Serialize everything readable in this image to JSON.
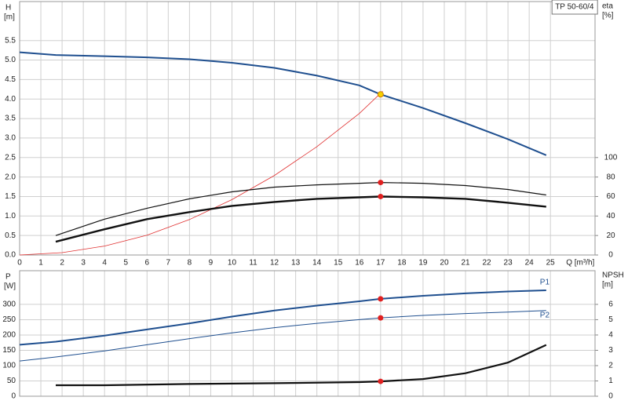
{
  "chart_data": [
    {
      "type": "line",
      "y_label": "H",
      "y_unit": "[m]",
      "y2_label": "eta",
      "y2_unit": "[%]",
      "x_label": "Q [m³/h]",
      "model": "TP 50-60/4",
      "xlim": [
        0,
        27.1
      ],
      "xticks": [
        0,
        1,
        2,
        3,
        4,
        5,
        6,
        7,
        8,
        9,
        10,
        11,
        12,
        13,
        14,
        15,
        16,
        17,
        18,
        19,
        20,
        21,
        22,
        23,
        24,
        25
      ],
      "ylim": [
        0,
        6.5
      ],
      "yticks": [
        {
          "value": 0,
          "label": "0.0"
        },
        0.5,
        {
          "value": 1,
          "label": "1.0"
        },
        1.5,
        {
          "value": 2,
          "label": "2.0"
        },
        2.5,
        {
          "value": 3,
          "label": "3.0"
        },
        3.5,
        {
          "value": 4,
          "label": "4.0"
        },
        4.5,
        {
          "value": 5,
          "label": "5.0"
        },
        5.5
      ],
      "y2lim": [
        0,
        260
      ],
      "y2ticks": [
        0,
        20,
        40,
        60,
        80,
        100
      ],
      "grid": true,
      "series": [
        {
          "color": "#1f4f8f",
          "width": 2,
          "axis": "y",
          "x": [
            0,
            1.7,
            4,
            6,
            8,
            10,
            12,
            14,
            16,
            17,
            19,
            21,
            23,
            24.8
          ],
          "values": [
            5.2,
            5.13,
            5.1,
            5.07,
            5.02,
            4.93,
            4.8,
            4.6,
            4.35,
            4.12,
            3.77,
            3.38,
            2.97,
            2.56
          ]
        },
        {
          "color": "#e03030",
          "width": 0.8,
          "axis": "y",
          "x": [
            0,
            2,
            4,
            6,
            8,
            10,
            12,
            14,
            16,
            17.1
          ],
          "values": [
            0,
            0.06,
            0.23,
            0.51,
            0.91,
            1.42,
            2.04,
            2.78,
            3.63,
            4.2
          ]
        },
        {
          "color": "#111111",
          "width": 1.2,
          "axis": "y2",
          "x": [
            1.7,
            4,
            6,
            8,
            10,
            12,
            14,
            16,
            17,
            19,
            21,
            23,
            24.8
          ],
          "values": [
            20,
            36.8,
            48,
            57.6,
            64.8,
            69.6,
            72,
            73.6,
            74.4,
            73.6,
            71.2,
            67.2,
            61.6
          ]
        },
        {
          "color": "#111111",
          "width": 2.4,
          "axis": "y2",
          "x": [
            1.7,
            4,
            6,
            8,
            10,
            12,
            14,
            16,
            17,
            19,
            21,
            23,
            24.8
          ],
          "values": [
            13.6,
            26.4,
            36.8,
            44,
            50.4,
            54.4,
            57.6,
            59.2,
            60,
            59.2,
            57.6,
            53.6,
            49.6
          ]
        }
      ],
      "duty_points": [
        {
          "x": 17,
          "y": 4.12,
          "axis": "y",
          "color": "#f5d000"
        },
        {
          "x": 17,
          "y": 74.4,
          "axis": "y2",
          "color": "#e02020"
        },
        {
          "x": 17,
          "y": 60,
          "axis": "y2",
          "color": "#e02020"
        }
      ]
    },
    {
      "type": "line",
      "y_label": "P",
      "y_unit": "[W]",
      "y2_label": "NPSH",
      "y2_unit": "[m]",
      "xlim": [
        0,
        27.1
      ],
      "xticks": [
        0,
        1,
        2,
        3,
        4,
        5,
        6,
        7,
        8,
        9,
        10,
        11,
        12,
        13,
        14,
        15,
        16,
        17,
        18,
        19,
        20,
        21,
        22,
        23,
        24,
        25
      ],
      "show_xtick_labels": false,
      "ylim": [
        0,
        410
      ],
      "yticks": [
        0,
        50,
        100,
        150,
        200,
        250,
        300
      ],
      "y2lim": [
        0,
        8.2
      ],
      "y2ticks": [
        0,
        1,
        2,
        3,
        4,
        5,
        6
      ],
      "grid": true,
      "series": [
        {
          "name": "P1",
          "color": "#1f4f8f",
          "width": 2,
          "axis": "y",
          "x": [
            0,
            1.7,
            4,
            6,
            8,
            10,
            12,
            14,
            16,
            17,
            19,
            21,
            23,
            24.8
          ],
          "values": [
            168,
            178,
            198,
            218,
            238,
            260,
            280,
            296,
            310,
            318,
            328,
            336,
            342,
            346
          ]
        },
        {
          "name": "P2",
          "color": "#1f4f8f",
          "width": 1,
          "axis": "y",
          "x": [
            0,
            1.7,
            4,
            6,
            8,
            10,
            12,
            14,
            16,
            17,
            19,
            21,
            23,
            24.8
          ],
          "values": [
            115,
            128,
            148,
            168,
            188,
            207,
            224,
            238,
            250,
            256,
            264,
            270,
            275,
            280
          ]
        },
        {
          "color": "#111111",
          "width": 2.2,
          "axis": "y2",
          "x": [
            1.7,
            4,
            8,
            12,
            16,
            17,
            19,
            21,
            23,
            24.8
          ],
          "values": [
            0.72,
            0.72,
            0.8,
            0.85,
            0.92,
            0.97,
            1.12,
            1.5,
            2.2,
            3.35
          ]
        }
      ],
      "duty_points": [
        {
          "x": 17,
          "y": 318,
          "axis": "y",
          "color": "#e02020"
        },
        {
          "x": 17,
          "y": 256,
          "axis": "y",
          "color": "#e02020"
        },
        {
          "x": 17,
          "y": 0.97,
          "axis": "y2",
          "color": "#e02020"
        }
      ]
    }
  ]
}
